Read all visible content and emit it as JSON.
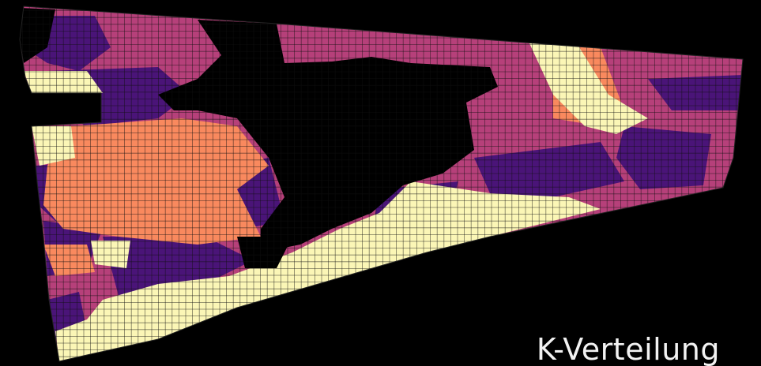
{
  "caption": "K-Verteilung",
  "palette": {
    "background": "#000000",
    "class_0": "#000000",
    "class_1": "#4a1478",
    "class_2": "#b6407a",
    "class_3": "#f9895e",
    "class_4": "#fbf6b6",
    "grid_line": "#111111"
  }
}
